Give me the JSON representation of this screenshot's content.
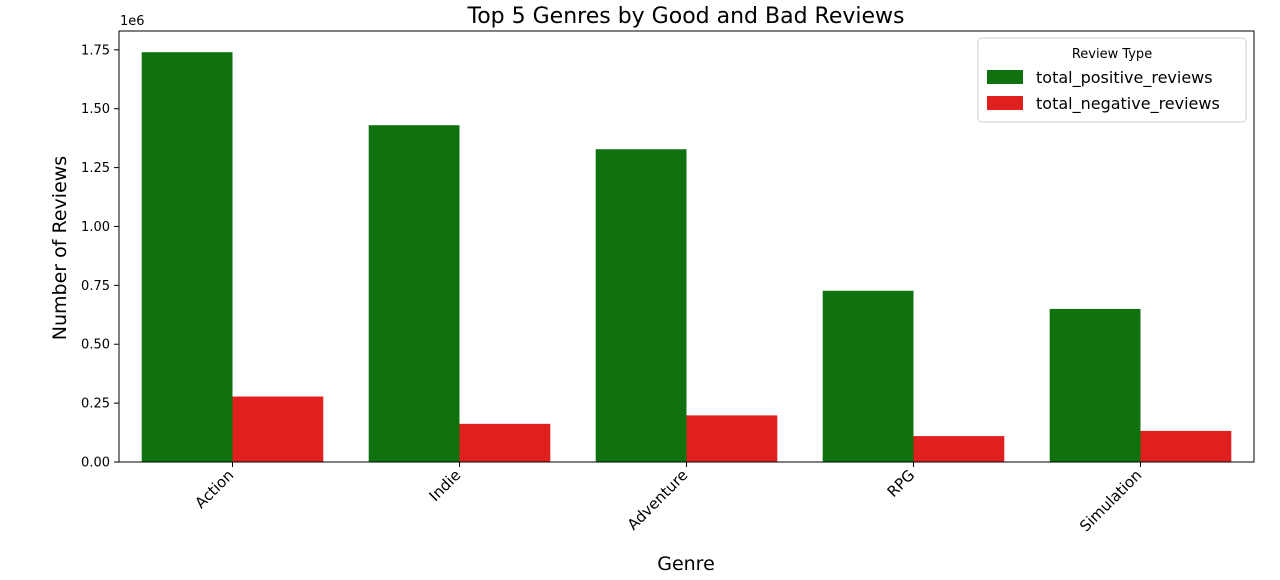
{
  "chart_data": {
    "type": "bar",
    "title": "Top 5 Genres by Good and Bad Reviews",
    "xlabel": "Genre",
    "ylabel": "Number of Reviews",
    "y_offset_label": "1e6",
    "categories": [
      "Action",
      "Indie",
      "Adventure",
      "RPG",
      "Simulation"
    ],
    "series": [
      {
        "name": "total_positive_reviews",
        "color": "#0f720f",
        "values": [
          1740000,
          1430000,
          1328000,
          727000,
          650000
        ]
      },
      {
        "name": "total_negative_reviews",
        "color": "#e01f1f",
        "values": [
          278000,
          162000,
          198000,
          110000,
          132000
        ]
      }
    ],
    "ylim": [
      0,
      1830000
    ],
    "yticks": [
      0,
      250000,
      500000,
      750000,
      1000000,
      1250000,
      1500000,
      1750000
    ],
    "ytick_labels": [
      "0.00",
      "0.25",
      "0.50",
      "0.75",
      "1.00",
      "1.25",
      "1.50",
      "1.75"
    ],
    "legend": {
      "title": "Review Type",
      "position": "top-right"
    },
    "grid": false
  }
}
